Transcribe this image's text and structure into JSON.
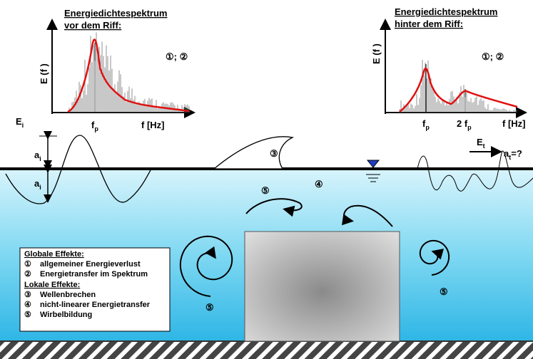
{
  "spectrum_before": {
    "title": [
      "Energiedichtespektrum",
      "vor dem Riff:"
    ],
    "y_label": "E (f )",
    "x_label": "f [Hz]",
    "peak": {
      "base": "f",
      "sub": "p"
    },
    "effects": "①; ②"
  },
  "spectrum_after": {
    "title": [
      "Energiedichtespektrum",
      "hinter dem Riff:"
    ],
    "y_label": "E (f )",
    "x_label": "f [Hz]",
    "peak": {
      "base": "f",
      "sub": "p"
    },
    "harmonic": {
      "base": "2 f",
      "sub": "p"
    },
    "effects": "①; ②"
  },
  "incident_energy": {
    "base": "E",
    "sub": "i"
  },
  "amplitude_up": {
    "base": "a",
    "sub": "i"
  },
  "amplitude_down": {
    "base": "a",
    "sub": "i"
  },
  "transmitted_energy": {
    "base": "E",
    "sub": "t"
  },
  "transmitted_amplitude": {
    "base": "a",
    "sub": "t",
    "suffix": "=?"
  },
  "markers": [
    "③",
    "④",
    "⑤",
    "⑤",
    "⑤"
  ],
  "legend": {
    "global_heading": "Globale Effekte:",
    "global_items": [
      {
        "symbol": "①",
        "text": "allgemeiner Energieverlust"
      },
      {
        "symbol": "②",
        "text": "Energietransfer im Spektrum"
      }
    ],
    "local_heading": "Lokale Effekte:",
    "local_items": [
      {
        "symbol": "③",
        "text": "Wellenbrechen"
      },
      {
        "symbol": "④",
        "text": "nicht-linearer Energietransfer"
      },
      {
        "symbol": "⑤",
        "text": "Wirbelbildung"
      }
    ]
  }
}
